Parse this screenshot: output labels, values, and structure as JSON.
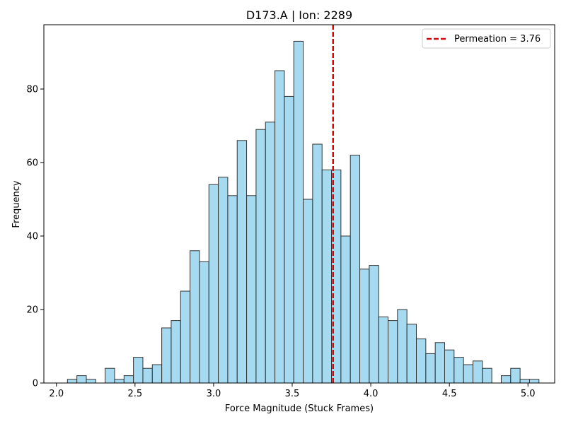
{
  "chart_data": {
    "type": "bar",
    "title": "D173.A | Ion: 2289",
    "xlabel": "Force Magnitude (Stuck Frames)",
    "ylabel": "Frequency",
    "xlim": [
      1.92,
      5.17
    ],
    "ylim": [
      0,
      97.5
    ],
    "xticks": [
      "2.0",
      "2.5",
      "3.0",
      "3.5",
      "4.0",
      "4.5",
      "5.0"
    ],
    "xtick_values": [
      2.0,
      2.5,
      3.0,
      3.5,
      4.0,
      4.5,
      5.0
    ],
    "yticks": [
      "0",
      "20",
      "40",
      "60",
      "80"
    ],
    "ytick_values": [
      0,
      20,
      40,
      60,
      80
    ],
    "grid": false,
    "bin_start": 2.07,
    "bin_width": 0.06,
    "bin_counts": [
      1,
      2,
      1,
      0,
      4,
      1,
      2,
      7,
      4,
      5,
      15,
      17,
      25,
      36,
      33,
      54,
      56,
      51,
      66,
      51,
      69,
      71,
      85,
      78,
      93,
      50,
      65,
      58,
      58,
      40,
      62,
      31,
      32,
      18,
      17,
      20,
      16,
      12,
      8,
      11,
      9,
      7,
      5,
      6,
      4,
      0,
      2,
      4,
      1,
      1
    ],
    "bar_color": "#87CEEB",
    "bar_edge_color": "#333333",
    "vline": {
      "x": 3.76,
      "color": "#e00000",
      "style": "dashed"
    },
    "legend": {
      "placement": "top-right",
      "entries": [
        {
          "label": "Permeation = 3.76",
          "color": "#e00000",
          "style": "dashed"
        }
      ]
    }
  }
}
